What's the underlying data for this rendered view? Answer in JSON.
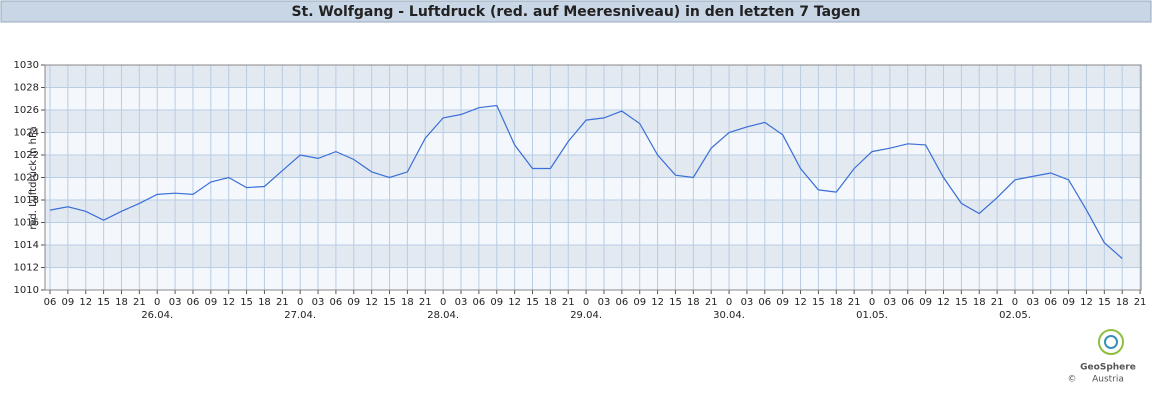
{
  "chart_data": {
    "type": "line",
    "title": "St. Wolfgang - Luftdruck (red. auf Meeresniveau) in den letzten 7 Tagen",
    "y_label": "red. Luftdruck in hPa",
    "categories": [
      "06",
      "09",
      "12",
      "15",
      "18",
      "21",
      "0",
      "03",
      "06",
      "09",
      "12",
      "15",
      "18",
      "21",
      "0",
      "03",
      "06",
      "09",
      "12",
      "15",
      "18",
      "21",
      "0",
      "03",
      "06",
      "09",
      "12",
      "15",
      "18",
      "21",
      "0",
      "03",
      "06",
      "09",
      "12",
      "15",
      "18",
      "21",
      "0",
      "03",
      "06",
      "09",
      "12",
      "15",
      "18",
      "21",
      "0",
      "03",
      "06",
      "09",
      "12",
      "15",
      "18",
      "21",
      "0",
      "03",
      "06",
      "09",
      "12",
      "15",
      "18",
      "21"
    ],
    "days": [
      "26.04.",
      "27.04.",
      "28.04.",
      "29.04.",
      "30.04.",
      "01.05.",
      "02.05."
    ],
    "series": [
      {
        "color": "#3a6fd8",
        "values": [
          1017.1,
          1017.4,
          1017.0,
          1016.2,
          1017.0,
          1017.7,
          1018.5,
          1018.6,
          1018.5,
          1019.6,
          1020.0,
          1019.1,
          1019.2,
          1020.6,
          1022.0,
          1021.7,
          1022.3,
          1021.6,
          1020.5,
          1020.0,
          1020.5,
          1023.5,
          1025.3,
          1025.6,
          1026.2,
          1026.4,
          1022.9,
          1020.8,
          1020.8,
          1023.2,
          1025.1,
          1025.3,
          1025.9,
          1024.8,
          1022.0,
          1020.2,
          1020.0,
          1022.6,
          1024.0,
          1024.5,
          1024.9,
          1023.8,
          1020.8,
          1018.9,
          1018.7,
          1020.8,
          1022.3,
          1022.6,
          1023.0,
          1022.9,
          1020.0,
          1017.7,
          1016.8,
          1018.2,
          1019.8,
          1020.1,
          1020.4,
          1019.8,
          1017.1,
          1014.2,
          1012.8,
          null
        ]
      }
    ],
    "ylim": [
      1010,
      1030
    ],
    "yticks": [
      1010,
      1012,
      1014,
      1016,
      1018,
      1020,
      1022,
      1024,
      1026,
      1028,
      1030
    ],
    "grid": true
  },
  "logo": {
    "name": "GeoSphere",
    "sub": "Austria",
    "copyright": "©"
  }
}
